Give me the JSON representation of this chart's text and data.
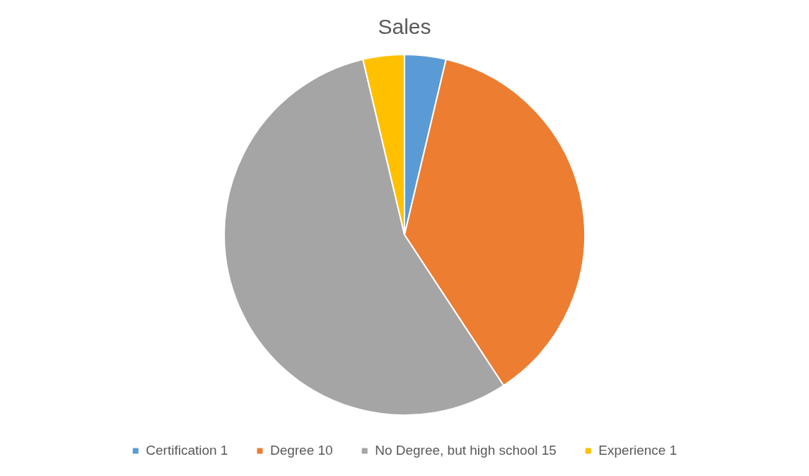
{
  "chart_data": {
    "type": "pie",
    "title": "Sales",
    "categories": [
      "Certification 1",
      "Degree 10",
      "No Degree, but high school 15",
      "Experience 1"
    ],
    "values": [
      1,
      10,
      15,
      1
    ],
    "colors": [
      "#5b9bd5",
      "#ed7d31",
      "#a5a5a5",
      "#ffc000"
    ],
    "legend": "bottom"
  }
}
